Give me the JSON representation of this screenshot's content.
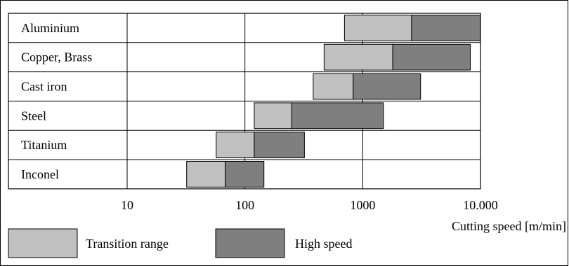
{
  "chart_data": {
    "type": "bar",
    "subtype": "horizontal-range",
    "x_scale": "log",
    "xlim": [
      10,
      10000
    ],
    "xlabel": "Cutting speed [m/min]",
    "x_ticks": [
      {
        "value": 10,
        "label": "10"
      },
      {
        "value": 100,
        "label": "100"
      },
      {
        "value": 1000,
        "label": "1000"
      },
      {
        "value": 10000,
        "label": "10.000"
      }
    ],
    "grid": "vertical major lines at each decade",
    "legend_position": "bottom",
    "categories": [
      "Aluminium",
      "Copper, Brass",
      "Cast iron",
      "Steel",
      "Titanium",
      "Inconel"
    ],
    "series": [
      {
        "name": "Transition range",
        "color": "#c0c0c0",
        "ranges": [
          [
            700,
            2600
          ],
          [
            470,
            1800
          ],
          [
            380,
            830
          ],
          [
            120,
            250
          ],
          [
            57,
            120
          ],
          [
            32,
            68
          ]
        ]
      },
      {
        "name": "High speed",
        "color": "#7f7f7f",
        "ranges": [
          [
            2600,
            10000
          ],
          [
            1800,
            8200
          ],
          [
            830,
            3100
          ],
          [
            250,
            1500
          ],
          [
            120,
            320
          ],
          [
            68,
            145
          ]
        ]
      }
    ]
  }
}
